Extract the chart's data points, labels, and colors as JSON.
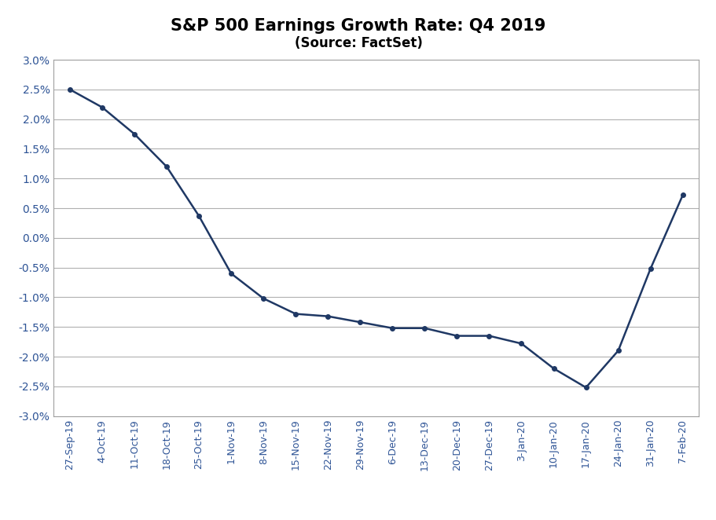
{
  "title": "S&P 500 Earnings Growth Rate: Q4 2019",
  "subtitle": "(Source: FactSet)",
  "x_labels": [
    "27-Sep-19",
    "4-Oct-19",
    "11-Oct-19",
    "18-Oct-19",
    "25-Oct-19",
    "1-Nov-19",
    "8-Nov-19",
    "15-Nov-19",
    "22-Nov-19",
    "29-Nov-19",
    "6-Dec-19",
    "13-Dec-19",
    "20-Dec-19",
    "27-Dec-19",
    "3-Jan-20",
    "10-Jan-20",
    "17-Jan-20",
    "24-Jan-20",
    "31-Jan-20",
    "7-Feb-20"
  ],
  "y_values": [
    2.5,
    2.2,
    1.75,
    1.2,
    0.37,
    -0.6,
    -1.02,
    -1.28,
    -1.32,
    -1.42,
    -1.52,
    -1.52,
    -1.65,
    -1.65,
    -1.78,
    -2.2,
    -2.52,
    -1.9,
    -0.52,
    0.72
  ],
  "line_color": "#1F3864",
  "marker": "o",
  "marker_size": 4,
  "line_width": 1.8,
  "ylim": [
    -3.0,
    3.0
  ],
  "ytick_step": 0.5,
  "background_color": "#ffffff",
  "plot_bg_color": "#ffffff",
  "grid_color": "#b0b0b0",
  "title_fontsize": 15,
  "subtitle_fontsize": 12,
  "tick_label_color": "#2E5496",
  "ytick_fontsize": 10,
  "xtick_fontsize": 9,
  "outer_border_color": "#a0a0a0"
}
